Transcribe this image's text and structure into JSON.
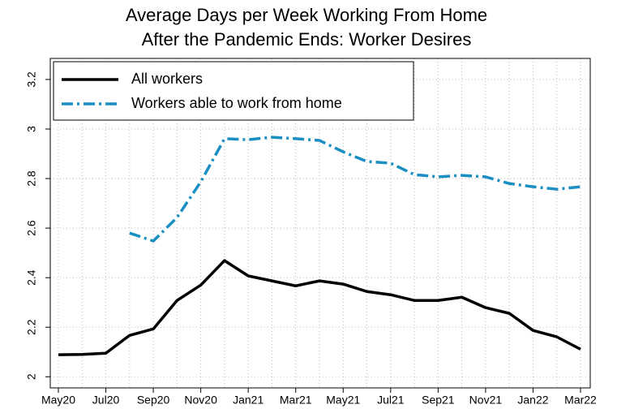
{
  "chart_data": {
    "type": "line",
    "title": [
      "Average Days per Week Working From Home",
      "After the Pandemic Ends: Worker Desires"
    ],
    "categories": [
      "May20",
      null,
      "Jul20",
      null,
      "Sep20",
      null,
      "Nov20",
      null,
      "Jan21",
      null,
      "Mar21",
      null,
      "May21",
      null,
      "Jul21",
      null,
      "Sep21",
      null,
      "Nov21",
      null,
      "Jan22",
      null,
      "Mar22"
    ],
    "series": [
      {
        "name": "All workers",
        "color": "#000000",
        "dash": "solid",
        "values": [
          2.089,
          2.09,
          2.095,
          2.167,
          2.193,
          2.308,
          2.37,
          2.469,
          2.407,
          2.387,
          2.367,
          2.387,
          2.374,
          2.344,
          2.331,
          2.308,
          2.308,
          2.321,
          2.279,
          2.256,
          2.187,
          2.161,
          2.111
        ]
      },
      {
        "name": "Workers able to work from home",
        "color": "#1b8fc2",
        "dash": "dashdot",
        "values": [
          null,
          null,
          null,
          2.58,
          2.548,
          2.643,
          2.787,
          2.961,
          2.957,
          2.967,
          2.961,
          2.954,
          2.908,
          2.869,
          2.862,
          2.816,
          2.807,
          2.813,
          2.807,
          2.78,
          2.767,
          2.757,
          2.767
        ]
      }
    ],
    "ylim": [
      1.955,
      3.285
    ],
    "yticks": [
      2,
      2.2,
      2.4,
      2.6,
      2.8,
      3,
      3.2
    ],
    "grid": true,
    "legend": "top-left"
  }
}
